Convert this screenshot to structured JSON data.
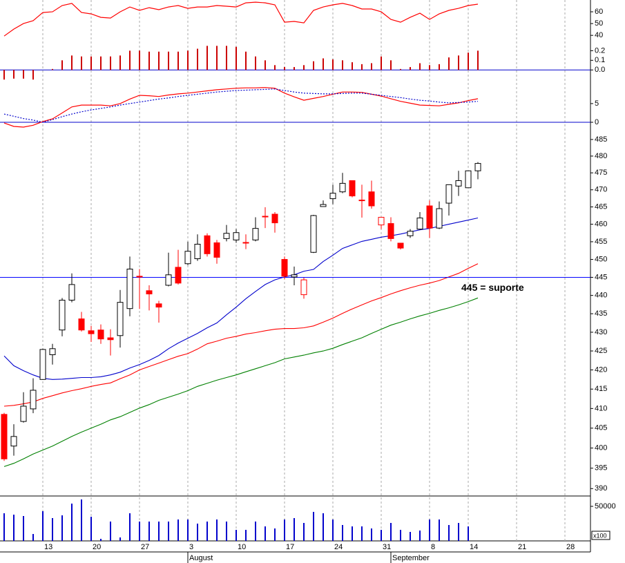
{
  "x_axis": {
    "categories": [
      null,
      null,
      null,
      null,
      "13",
      null,
      null,
      null,
      null,
      "20",
      null,
      null,
      null,
      null,
      "27",
      null,
      null,
      null,
      null,
      "3",
      null,
      null,
      null,
      null,
      "10",
      null,
      null,
      null,
      null,
      "17",
      null,
      null,
      null,
      null,
      "24",
      null,
      null,
      null,
      null,
      "31",
      null,
      null,
      null,
      null,
      "8",
      null,
      null,
      null,
      "14",
      null,
      null,
      null,
      null,
      "21",
      null,
      null,
      null,
      null,
      "28",
      null,
      null
    ],
    "months": [
      null,
      null,
      null,
      null,
      null,
      null,
      null,
      null,
      null,
      null,
      null,
      null,
      null,
      null,
      null,
      null,
      null,
      null,
      null,
      "August",
      null,
      null,
      null,
      null,
      null,
      null,
      null,
      null,
      null,
      null,
      null,
      null,
      null,
      null,
      null,
      null,
      null,
      null,
      null,
      null,
      "September",
      null,
      null,
      null,
      null,
      null,
      null,
      null,
      null,
      null,
      null,
      null,
      null,
      null,
      null,
      null,
      null,
      null,
      null,
      null,
      null
    ]
  },
  "chart_data": [
    {
      "type": "line",
      "ylim": [
        36,
        70
      ],
      "yticks": [
        60,
        50,
        40
      ],
      "series": [
        {
          "color": "#ff0000",
          "style": "solid",
          "values": [
            39.4,
            45.3,
            50,
            52.4,
            59.4,
            60,
            65.3,
            67.1,
            59.4,
            58.2,
            55.3,
            54.7,
            60,
            64.1,
            61.2,
            63.5,
            61.8,
            64.1,
            65.3,
            62.9,
            64.1,
            64.1,
            65.3,
            64.7,
            64.1,
            67.6,
            68.2,
            67.6,
            65.9,
            51.2,
            51.8,
            50.6,
            61.2,
            64.1,
            65.9,
            67.1,
            65.3,
            62.4,
            62.4,
            60,
            53.5,
            51.2,
            55.3,
            58.8,
            53.5,
            58.2,
            61.2,
            62.9,
            65.3,
            66.5,
            null,
            null,
            null,
            null,
            null,
            null,
            null,
            null,
            null,
            null,
            null
          ]
        }
      ]
    },
    {
      "type": "bar",
      "ylim": [
        -0.12,
        0.31
      ],
      "yticks": [
        0.2,
        0.1,
        {
          "value": 0,
          "label": "0.0"
        }
      ],
      "color": "#cc0000",
      "zero_line_color": "#0000cc",
      "values": [
        -0.1,
        -0.09,
        -0.09,
        -0.1,
        0,
        0.01,
        0.1,
        0.15,
        0.14,
        0.14,
        0.14,
        0.14,
        0.15,
        0.2,
        0.2,
        0.19,
        0.19,
        0.19,
        0.19,
        0.2,
        0.22,
        0.25,
        0.25,
        0.25,
        0.24,
        0.19,
        0.14,
        0.1,
        0.05,
        0.03,
        0.03,
        0.05,
        0.09,
        0.12,
        0.11,
        0.1,
        0.08,
        0.06,
        0.07,
        0.14,
        0.1,
        0.01,
        0.03,
        0.07,
        0.05,
        0.06,
        0.13,
        0.15,
        0.18,
        0.2,
        null,
        null,
        null,
        null,
        null,
        null,
        null,
        null,
        null,
        null,
        null
      ]
    },
    {
      "type": "line",
      "ylim": [
        -2.4,
        10.9
      ],
      "yticks": [
        5,
        0
      ],
      "zero_line_color": "#0000cc",
      "series": [
        {
          "color": "#ff0000",
          "style": "solid",
          "values": [
            -0.2,
            -1.1,
            -1.3,
            -0.8,
            0.2,
            0.9,
            2.5,
            4.1,
            4.6,
            4.6,
            4.6,
            4.4,
            5.0,
            6.2,
            7.2,
            7.1,
            6.9,
            7.3,
            7.6,
            7.8,
            8.1,
            8.4,
            8.7,
            8.9,
            9.1,
            9.2,
            9.2,
            9.3,
            9.1,
            7.8,
            6.8,
            5.9,
            6.4,
            6.9,
            7.5,
            8.1,
            8.1,
            8.0,
            7.5,
            7.0,
            6.3,
            5.6,
            5.1,
            4.6,
            4.5,
            4.4,
            4.8,
            5.2,
            5.8,
            6.3,
            null,
            null,
            null,
            null,
            null,
            null,
            null,
            null,
            null,
            null,
            null
          ]
        },
        {
          "color": "#0000cc",
          "style": "dotted",
          "values": [
            2.2,
            1.6,
            1.0,
            0.6,
            0.0,
            0.7,
            1.5,
            2.2,
            2.8,
            3.3,
            3.7,
            4.1,
            4.6,
            5.0,
            5.4,
            5.8,
            6.2,
            6.5,
            6.9,
            7.2,
            7.5,
            7.8,
            8.1,
            8.3,
            8.5,
            8.6,
            8.7,
            8.8,
            8.9,
            8.5,
            8.1,
            7.8,
            7.7,
            7.6,
            7.6,
            7.7,
            7.8,
            7.8,
            7.5,
            7.2,
            6.9,
            6.6,
            6.2,
            5.9,
            5.7,
            5.4,
            5.2,
            5.3,
            5.4,
            5.6,
            null,
            null,
            null,
            null,
            null,
            null,
            null,
            null,
            null,
            null,
            null
          ]
        }
      ]
    },
    {
      "type": "candlestick",
      "log_scale": true,
      "ylim": [
        388.2,
        487.5
      ],
      "yticks": [
        485,
        480,
        475,
        470,
        465,
        460,
        455,
        450,
        445,
        440,
        435,
        430,
        425,
        420,
        415,
        410,
        405,
        400,
        395,
        390
      ],
      "up_color": "#000000",
      "down_color": "#ff0000",
      "open": [
        408.5,
        400.5,
        406.7,
        409.9,
        417.5,
        424.0,
        430.6,
        438.7,
        433.6,
        430.4,
        430.6,
        428.5,
        429.1,
        436.4,
        445.3,
        441.3,
        437.7,
        442.8,
        447.8,
        448.8,
        450.2,
        456.7,
        454.7,
        455.9,
        455.5,
        454.8,
        455.5,
        462.3,
        462.9,
        450.0,
        445.1,
        440.2,
        452.0,
        465.1,
        467.4,
        469.4,
        472.7,
        467.0,
        469.4,
        459.8,
        460.2,
        454.6,
        456.7,
        458.6,
        465.3,
        458.9,
        466.1,
        471.1,
        470.6,
        475.6,
        null,
        null,
        null,
        null,
        null,
        null,
        null,
        null,
        null,
        null,
        null
      ],
      "high": [
        408.9,
        406.0,
        414.2,
        417.8,
        425.6,
        426.9,
        439.3,
        446.1,
        435.5,
        431.7,
        432.1,
        430.8,
        441.5,
        450.8,
        447.3,
        442.8,
        438.5,
        451.9,
        452.7,
        455.0,
        457.1,
        457.4,
        455.5,
        459.8,
        458.6,
        457.1,
        462.0,
        464.9,
        463.5,
        450.8,
        448.0,
        444.9,
        462.7,
        466.9,
        471.5,
        475.0,
        472.7,
        471.5,
        472.7,
        462.0,
        462.0,
        454.6,
        458.6,
        463.5,
        466.9,
        466.6,
        471.5,
        475.6,
        475.6,
        478.2,
        null,
        null,
        null,
        null,
        null,
        null,
        null,
        null,
        null,
        null,
        null
      ],
      "low": [
        396.8,
        398.1,
        406.4,
        408.8,
        417.4,
        421.4,
        428.9,
        438.1,
        430.2,
        427.4,
        426.9,
        423.8,
        425.9,
        434.3,
        436.3,
        435.9,
        432.6,
        442.5,
        443.0,
        448.4,
        449.6,
        450.8,
        448.8,
        455.1,
        454.7,
        452.9,
        455.1,
        458.9,
        457.6,
        444.5,
        442.8,
        439.1,
        451.8,
        465.0,
        465.8,
        469.0,
        467.8,
        461.9,
        464.5,
        458.6,
        455.1,
        452.8,
        456.1,
        458.4,
        456.1,
        458.6,
        462.5,
        468.2,
        470.6,
        473.1,
        null,
        null,
        null,
        null,
        null,
        null,
        null,
        null,
        null,
        null,
        null
      ],
      "close": [
        397.3,
        402.9,
        410.6,
        414.7,
        425.4,
        425.6,
        438.7,
        443.0,
        430.6,
        429.6,
        428.2,
        428.0,
        438.1,
        447.3,
        445.1,
        440.4,
        436.8,
        445.7,
        443.4,
        452.3,
        454.3,
        451.6,
        450.6,
        457.4,
        457.6,
        454.6,
        458.8,
        462.1,
        460.4,
        445.3,
        445.7,
        444.3,
        462.5,
        465.7,
        469.0,
        471.9,
        468.2,
        466.8,
        465.3,
        462.0,
        455.9,
        453.2,
        458.0,
        461.8,
        458.9,
        464.5,
        471.5,
        472.7,
        475.6,
        477.8,
        null,
        null,
        null,
        null,
        null,
        null,
        null,
        null,
        null,
        null,
        null
      ],
      "series": [
        {
          "color": "#0000cc",
          "values": [
            423.7,
            421.1,
            419.8,
            418.7,
            417.8,
            417.5,
            417.6,
            417.8,
            418.0,
            418.0,
            418.2,
            418.7,
            419.4,
            420.5,
            421.4,
            422.5,
            423.8,
            425.6,
            427.1,
            428.4,
            429.7,
            431.2,
            432.5,
            434.7,
            436.8,
            439.1,
            441.1,
            443.0,
            444.3,
            445.1,
            445.7,
            446.7,
            447.2,
            449.4,
            451.2,
            453.1,
            454.1,
            455.1,
            455.7,
            456.3,
            456.7,
            457.2,
            457.8,
            458.4,
            458.8,
            459.4,
            460.0,
            460.6,
            461.2,
            461.8,
            null,
            null,
            null,
            null,
            null,
            null,
            null,
            null,
            null,
            null,
            null
          ]
        },
        {
          "color": "#ff0000",
          "values": [
            410.6,
            410.8,
            411.2,
            411.7,
            412.6,
            413.3,
            414.0,
            414.6,
            415.1,
            415.7,
            416.2,
            416.6,
            417.7,
            418.7,
            420.0,
            420.9,
            421.8,
            422.7,
            423.6,
            424.3,
            425.5,
            426.9,
            427.6,
            428.4,
            428.9,
            429.5,
            429.9,
            430.4,
            430.8,
            431.0,
            431.0,
            431.2,
            431.7,
            432.7,
            433.8,
            435.1,
            436.3,
            437.4,
            438.5,
            439.4,
            440.4,
            441.3,
            442.1,
            442.8,
            443.4,
            444.1,
            445.1,
            446.1,
            447.5,
            448.8,
            null,
            null,
            null,
            null,
            null,
            null,
            null,
            null,
            null,
            null,
            null
          ]
        },
        {
          "color": "#008000",
          "values": [
            395.4,
            396.2,
            397.3,
            398.5,
            399.5,
            400.5,
            401.7,
            402.9,
            404.0,
            405.0,
            406.0,
            407.1,
            407.9,
            409.0,
            410.1,
            411.0,
            412.1,
            412.9,
            413.7,
            414.6,
            415.7,
            416.5,
            417.3,
            418.0,
            418.7,
            419.5,
            420.3,
            421.1,
            421.9,
            422.9,
            423.4,
            423.9,
            424.5,
            425.0,
            425.7,
            426.7,
            427.6,
            428.5,
            429.7,
            430.8,
            431.9,
            432.7,
            433.6,
            434.4,
            435.1,
            435.9,
            436.6,
            437.4,
            438.3,
            439.3,
            null,
            null,
            null,
            null,
            null,
            null,
            null,
            null,
            null,
            null,
            null
          ]
        }
      ],
      "hlines": [
        {
          "value": 445,
          "label": "445 = suporte",
          "color": "#0000ff"
        }
      ]
    },
    {
      "type": "bar",
      "ylim": [
        0,
        65000
      ],
      "yticks": [
        50000
      ],
      "unit_label": "x100",
      "color": "#0000cc",
      "values": [
        40000,
        38000,
        36000,
        10000,
        43000,
        33000,
        37000,
        54000,
        60000,
        35000,
        3000,
        28000,
        5000,
        40000,
        28000,
        28000,
        28000,
        28000,
        31000,
        31000,
        25000,
        28000,
        31000,
        28000,
        16000,
        16000,
        28000,
        21000,
        18000,
        31000,
        33000,
        26000,
        42000,
        40000,
        31000,
        23000,
        21000,
        21000,
        18000,
        16000,
        26000,
        16000,
        13000,
        15000,
        31000,
        31000,
        23000,
        26000,
        21000,
        null,
        null,
        null,
        null,
        null,
        null,
        null,
        null,
        null,
        null,
        null,
        null
      ]
    }
  ]
}
